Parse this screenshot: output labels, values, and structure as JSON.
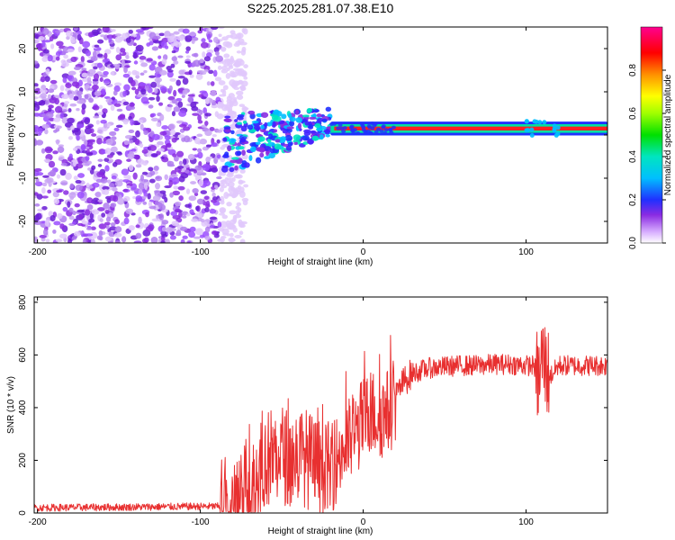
{
  "chart_data": [
    {
      "type": "heatmap",
      "title": "S225.2025.281.07.38.E10",
      "xlabel": "Height of straight line (km)",
      "ylabel": "Frequency (Hz)",
      "xlim": [
        -202,
        150
      ],
      "ylim": [
        -25,
        25
      ],
      "xticks": [
        -200,
        -100,
        0,
        100
      ],
      "yticks": [
        -20,
        -10,
        0,
        10,
        20
      ],
      "colorbar": {
        "label": "Normalized spectral amplitude",
        "range": [
          0,
          1
        ],
        "ticks": [
          0.0,
          0.2,
          0.4,
          0.6,
          0.8
        ]
      },
      "features": {
        "noise_region_km": [
          -202,
          -72
        ],
        "transition_region_km": [
          -85,
          -20
        ],
        "signal_band_freq_hz": 1.5,
        "signal_start_km": -20,
        "signal_end_km": 150
      }
    },
    {
      "type": "line",
      "xlabel": "Height of straight line (km)",
      "ylabel": "SNR (10 * v/v)",
      "xlim": [
        -202,
        150
      ],
      "ylim": [
        0,
        820
      ],
      "xticks": [
        -200,
        -100,
        0,
        100
      ],
      "yticks": [
        0,
        200,
        400,
        600,
        800
      ],
      "series": [
        {
          "name": "SNR",
          "color": "#e83030",
          "x": [
            -202,
            -150,
            -100,
            -88,
            -84,
            -75,
            -65,
            -60,
            -55,
            -50,
            -45,
            -40,
            -35,
            -30,
            -25,
            -20,
            -15,
            -10,
            -5,
            0,
            5,
            10,
            15,
            20,
            25,
            30,
            40,
            50,
            60,
            70,
            80,
            90,
            100,
            105,
            108,
            110,
            112,
            115,
            120,
            130,
            140,
            150
          ],
          "y": [
            20,
            22,
            25,
            25,
            40,
            60,
            120,
            200,
            220,
            230,
            200,
            220,
            210,
            180,
            160,
            160,
            220,
            260,
            300,
            350,
            380,
            370,
            380,
            440,
            500,
            530,
            550,
            555,
            560,
            560,
            565,
            565,
            560,
            560,
            500,
            600,
            550,
            520,
            560,
            560,
            560,
            560
          ]
        }
      ]
    }
  ]
}
